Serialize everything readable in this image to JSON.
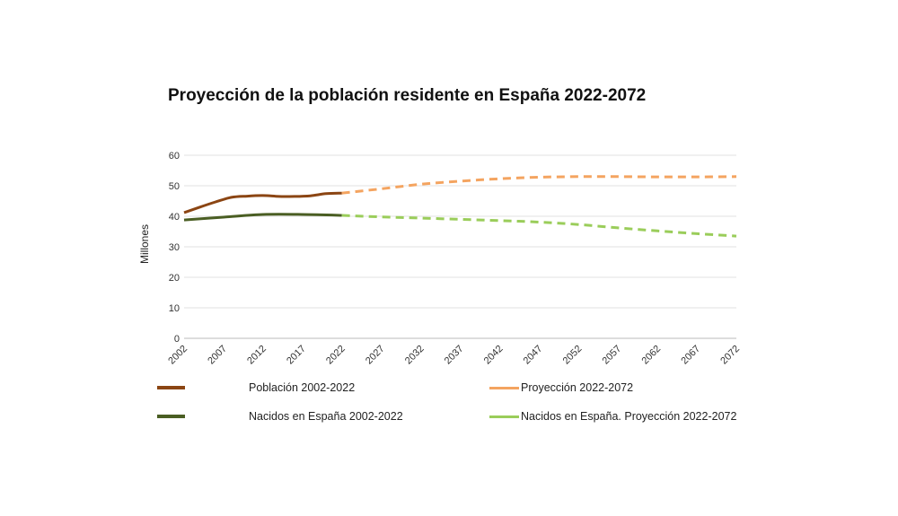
{
  "chart_data": {
    "type": "line",
    "title": "Proyección de la población residente en España 2022-2072",
    "xlabel": "",
    "ylabel": "Millones",
    "ylim": [
      0,
      60
    ],
    "yticks": [
      0,
      10,
      20,
      30,
      40,
      50,
      60
    ],
    "xticks": [
      "2002",
      "2007",
      "2012",
      "2017",
      "2022",
      "2027",
      "2032",
      "2037",
      "2042",
      "2047",
      "2052",
      "2057",
      "2062",
      "2067",
      "2072"
    ],
    "grid": true,
    "legend_position": "bottom",
    "series": [
      {
        "name": "Población 2002-2022",
        "color": "#8B4513",
        "style": "solid",
        "x": [
          2002,
          2004,
          2006,
          2008,
          2010,
          2012,
          2014,
          2016,
          2018,
          2020,
          2022
        ],
        "values": [
          41.2,
          43.0,
          44.7,
          46.2,
          46.6,
          46.8,
          46.5,
          46.5,
          46.7,
          47.4,
          47.6
        ]
      },
      {
        "name": "Proyección 2022-2072",
        "color": "#F4A460",
        "style": "dashed",
        "x": [
          2022,
          2027,
          2032,
          2037,
          2042,
          2047,
          2052,
          2057,
          2062,
          2067,
          2072
        ],
        "values": [
          47.6,
          49.0,
          50.5,
          51.5,
          52.3,
          52.8,
          53.0,
          53.0,
          52.9,
          52.9,
          53.0
        ]
      },
      {
        "name": "Nacidos en España 2002-2022",
        "color": "#4A5E23",
        "style": "solid",
        "x": [
          2002,
          2007,
          2012,
          2017,
          2022
        ],
        "values": [
          38.8,
          39.7,
          40.6,
          40.6,
          40.3
        ]
      },
      {
        "name": "Nacidos en España. Proyección 2022-2072",
        "color": "#9ACD5A",
        "style": "dashed",
        "x": [
          2022,
          2027,
          2032,
          2037,
          2042,
          2047,
          2052,
          2057,
          2062,
          2067,
          2072
        ],
        "values": [
          40.3,
          39.8,
          39.4,
          39.0,
          38.6,
          38.1,
          37.3,
          36.2,
          35.2,
          34.3,
          33.5
        ]
      }
    ]
  },
  "legend": [
    {
      "label": "Población 2002-2022",
      "color": "#8B4513",
      "style": "solid"
    },
    {
      "label": "Proyección 2022-2072",
      "color": "#F4A460",
      "style": "solid"
    },
    {
      "label": "Nacidos en España 2002-2022",
      "color": "#4A5E23",
      "style": "solid"
    },
    {
      "label": "Nacidos en España. Proyección 2022-2072",
      "color": "#9ACD5A",
      "style": "solid"
    }
  ]
}
